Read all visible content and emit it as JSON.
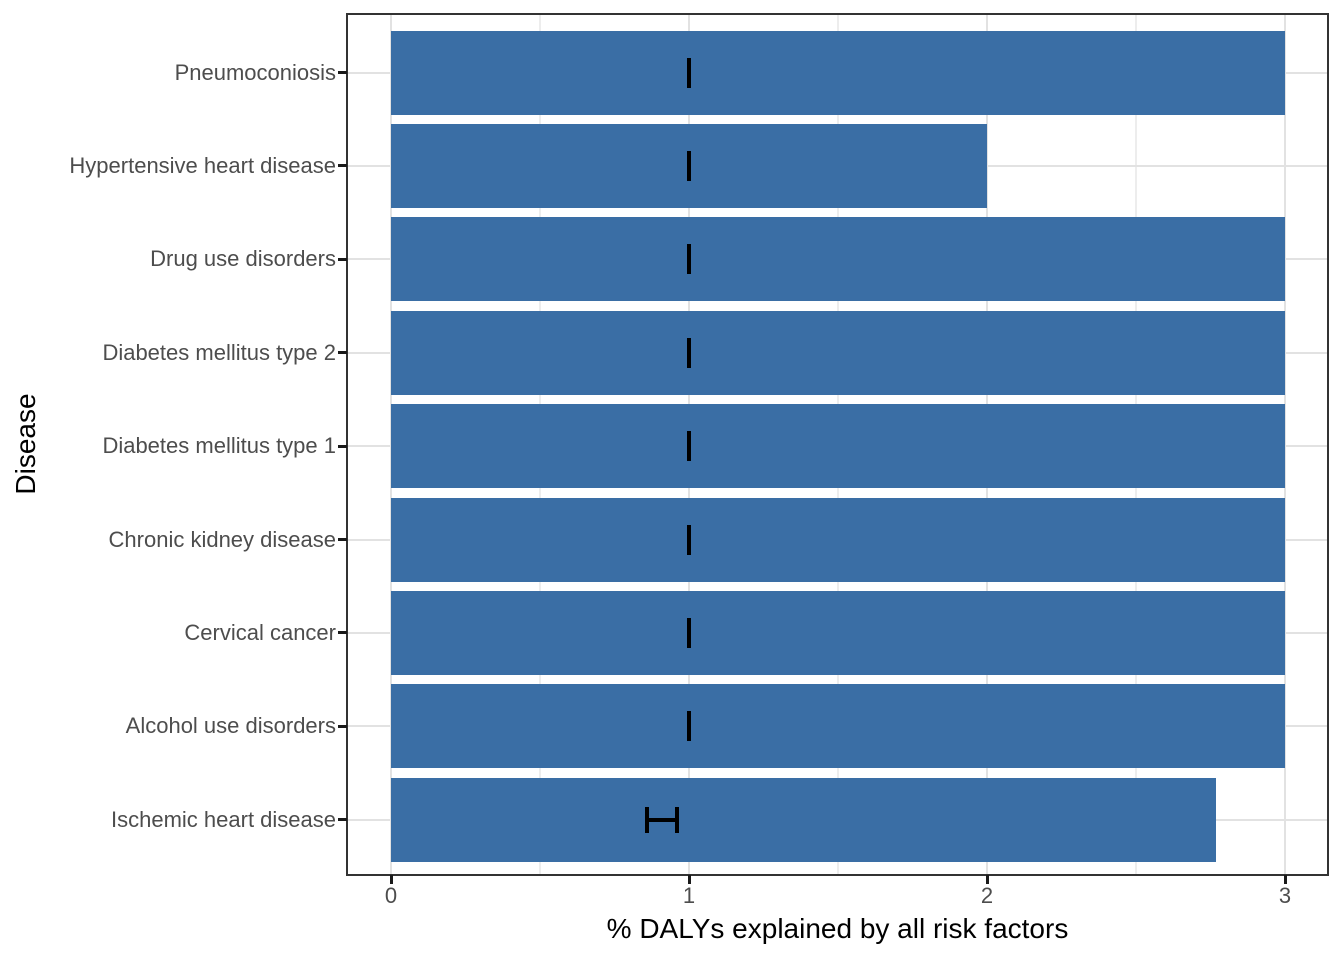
{
  "chart_data": {
    "type": "bar",
    "orientation": "horizontal",
    "title": "",
    "xlabel": "% DALYs explained by all risk factors",
    "ylabel": "Disease",
    "categories_top_to_bottom": [
      "Pneumoconiosis",
      "Hypertensive heart disease",
      "Drug use disorders",
      "Diabetes mellitus type 2",
      "Diabetes mellitus type 1",
      "Chronic kidney disease",
      "Cervical cancer",
      "Alcohol use disorders",
      "Ischemic heart disease"
    ],
    "values": [
      3.0,
      2.0,
      3.0,
      3.0,
      3.0,
      3.0,
      3.0,
      3.0,
      2.77
    ],
    "error_bars": [
      {
        "lo": 1.0,
        "hi": 1.0
      },
      {
        "lo": 1.0,
        "hi": 1.0
      },
      {
        "lo": 1.0,
        "hi": 1.0
      },
      {
        "lo": 1.0,
        "hi": 1.0
      },
      {
        "lo": 1.0,
        "hi": 1.0
      },
      {
        "lo": 1.0,
        "hi": 1.0
      },
      {
        "lo": 1.0,
        "hi": 1.0
      },
      {
        "lo": 1.0,
        "hi": 1.0
      },
      {
        "lo": 0.86,
        "hi": 0.96
      }
    ],
    "xlim": [
      -0.15,
      3.15
    ],
    "x_ticks": [
      0,
      1,
      2,
      3
    ],
    "x_tick_labels": [
      "0",
      "1",
      "2",
      "3"
    ],
    "x_minor_gridlines": [
      0.5,
      1.5,
      2.5
    ],
    "grid": "vertical major+minor, horizontal major at category centers",
    "legend": "none",
    "bar_color": "#3a6ea5",
    "errorbar_color": "#000000"
  },
  "style": {
    "background": "#ffffff",
    "panel_background": "#ffffff",
    "panel_border_color": "#333333",
    "grid_major_color": "#e2e2e2",
    "grid_minor_color": "#ededed",
    "tick_color": "#1a1a1a",
    "tick_label_color": "#4d4d4d",
    "axis_title_color": "#000000"
  }
}
